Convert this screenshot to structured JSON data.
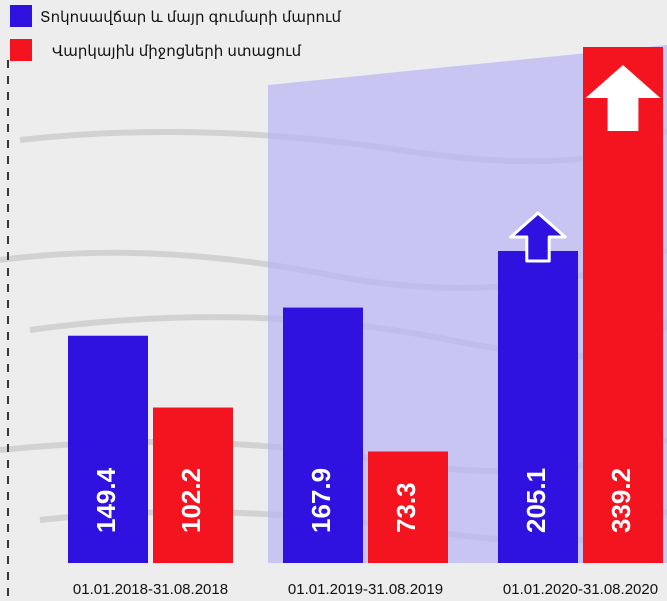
{
  "chart_data": {
    "type": "bar",
    "categories": [
      "01.01.2018-31.08.2018",
      "01.01.2019-31.08.2019",
      "01.01.2020-31.08.2020"
    ],
    "series": [
      {
        "name": "Տոկոսավճար և մայր գումարի մարում",
        "color": "#2f12e0",
        "values": [
          149.4,
          167.9,
          205.1
        ]
      },
      {
        "name": "Վարկային միջոցների ստացում",
        "color": "#f41420",
        "values": [
          102.2,
          73.3,
          339.2
        ]
      }
    ],
    "legend": "top-left"
  }
}
